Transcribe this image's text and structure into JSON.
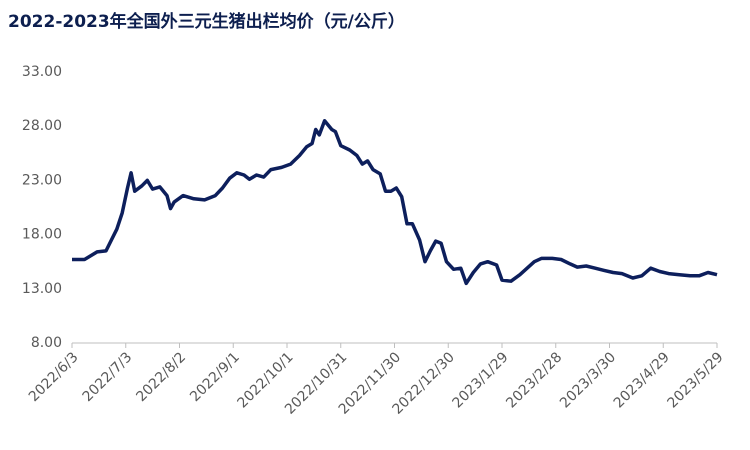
{
  "chart_data": {
    "type": "line",
    "title": "2022-2023年全国外三元生猪出栏均价（元/公斤）",
    "x": [
      "2022/6/3",
      "2022/6/10",
      "2022/6/13",
      "2022/6/17",
      "2022/6/22",
      "2022/6/25",
      "2022/6/28",
      "2022/7/1",
      "2022/7/4",
      "2022/7/6",
      "2022/7/8",
      "2022/7/12",
      "2022/7/15",
      "2022/7/18",
      "2022/7/22",
      "2022/7/26",
      "2022/7/28",
      "2022/7/30",
      "2022/8/4",
      "2022/8/10",
      "2022/8/16",
      "2022/8/22",
      "2022/8/26",
      "2022/8/30",
      "2022/9/3",
      "2022/9/7",
      "2022/9/10",
      "2022/9/14",
      "2022/9/18",
      "2022/9/22",
      "2022/9/28",
      "2022/10/3",
      "2022/10/8",
      "2022/10/12",
      "2022/10/15",
      "2022/10/17",
      "2022/10/19",
      "2022/10/22",
      "2022/10/26",
      "2022/10/28",
      "2022/10/31",
      "2022/11/5",
      "2022/11/9",
      "2022/11/12",
      "2022/11/15",
      "2022/11/18",
      "2022/11/22",
      "2022/11/25",
      "2022/11/28",
      "2022/12/1",
      "2022/12/4",
      "2022/12/7",
      "2022/12/10",
      "2022/12/14",
      "2022/12/17",
      "2022/12/20",
      "2022/12/23",
      "2022/12/26",
      "2022/12/29",
      "2023/1/2",
      "2023/1/6",
      "2023/1/9",
      "2023/1/13",
      "2023/1/17",
      "2023/1/21",
      "2023/1/26",
      "2023/1/29",
      "2023/2/3",
      "2023/2/8",
      "2023/2/12",
      "2023/2/16",
      "2023/2/20",
      "2023/2/26",
      "2023/3/3",
      "2023/3/8",
      "2023/3/12",
      "2023/3/17",
      "2023/3/22",
      "2023/3/27",
      "2023/4/1",
      "2023/4/6",
      "2023/4/12",
      "2023/4/17",
      "2023/4/22",
      "2023/4/27",
      "2023/5/2",
      "2023/5/8",
      "2023/5/14",
      "2023/5/19",
      "2023/5/24",
      "2023/5/29"
    ],
    "series": [
      {
        "name": "外三元生猪出栏均价",
        "color": "#0d1f5c",
        "values": [
          15.7,
          15.7,
          16.0,
          16.4,
          16.5,
          17.5,
          18.5,
          20.0,
          22.3,
          23.7,
          22.0,
          22.5,
          23.0,
          22.2,
          22.4,
          21.6,
          20.4,
          21.0,
          21.6,
          21.3,
          21.2,
          21.6,
          22.3,
          23.2,
          23.7,
          23.5,
          23.1,
          23.5,
          23.3,
          24.0,
          24.2,
          24.5,
          25.3,
          26.1,
          26.4,
          27.7,
          27.2,
          28.5,
          27.7,
          27.5,
          26.2,
          25.8,
          25.3,
          24.5,
          24.8,
          24.0,
          23.6,
          22.0,
          22.0,
          22.3,
          21.5,
          19.0,
          19.0,
          17.5,
          15.5,
          16.5,
          17.4,
          17.2,
          15.5,
          14.8,
          14.9,
          13.5,
          14.5,
          15.3,
          15.5,
          15.2,
          13.8,
          13.7,
          14.3,
          14.9,
          15.5,
          15.8,
          15.8,
          15.7,
          15.3,
          15.0,
          15.1,
          14.9,
          14.7,
          14.5,
          14.4,
          14.0,
          14.2,
          14.9,
          14.6,
          14.4,
          14.3,
          14.2,
          14.2,
          14.5,
          14.3
        ]
      }
    ],
    "xlim": [
      "2022/6/3",
      "2023/5/29"
    ],
    "xticks": [
      "2022/6/3",
      "2022/7/3",
      "2022/8/2",
      "2022/9/1",
      "2022/10/1",
      "2022/10/31",
      "2022/11/30",
      "2022/12/30",
      "2023/1/29",
      "2023/2/28",
      "2023/3/30",
      "2023/4/29",
      "2023/5/29"
    ],
    "ylim": [
      8,
      33
    ],
    "yticks": [
      {
        "value": 8,
        "label": "8.00"
      },
      {
        "value": 13,
        "label": "13.00"
      },
      {
        "value": 18,
        "label": "18.00"
      },
      {
        "value": 23,
        "label": "23.00"
      },
      {
        "value": 28,
        "label": "28.00"
      },
      {
        "value": 33,
        "label": "33.00"
      }
    ],
    "grid": false
  }
}
